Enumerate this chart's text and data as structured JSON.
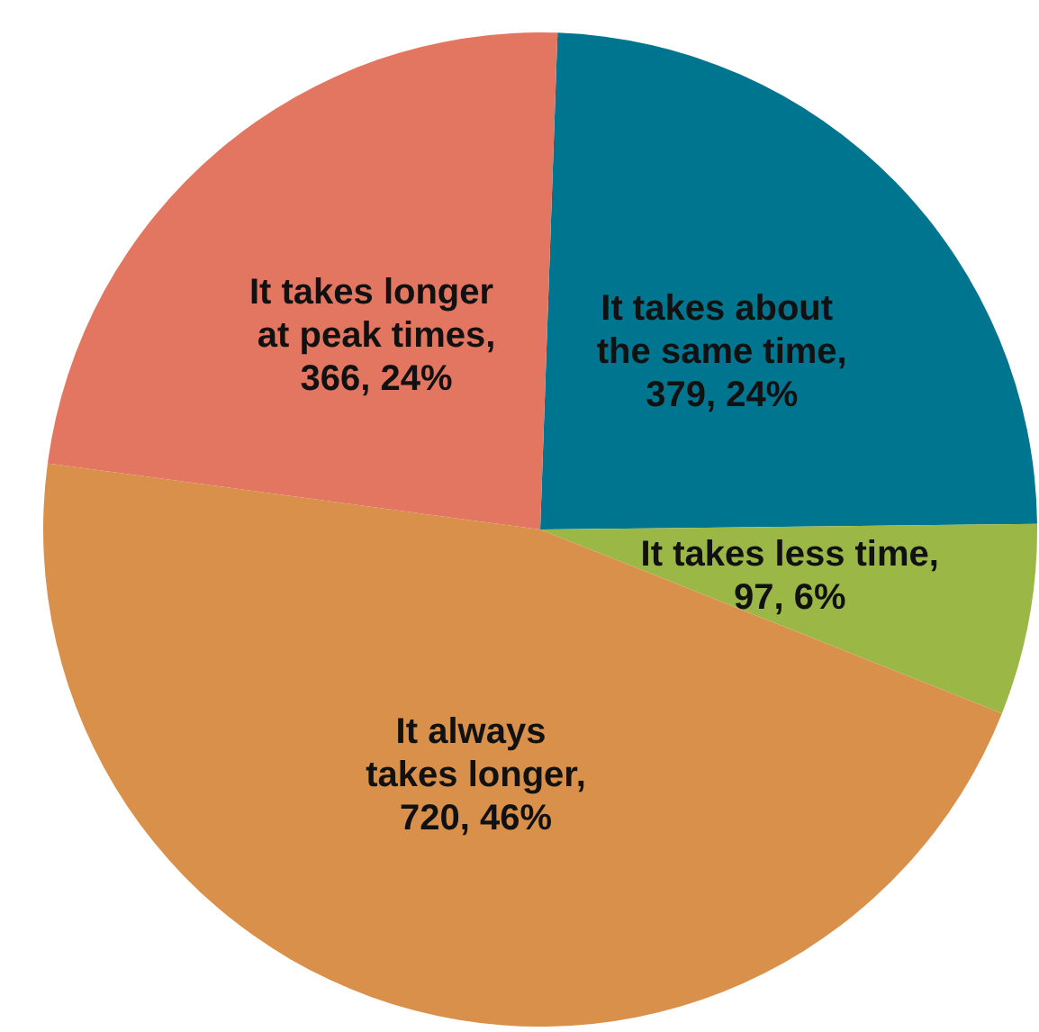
{
  "chart_data": {
    "type": "pie",
    "categories": [
      "It takes about the same time",
      "It takes less time",
      "It always takes longer",
      "It takes longer at peak times"
    ],
    "values": [
      379,
      97,
      720,
      366
    ],
    "value_labels": [
      ", 379, 24%",
      ", 97, 6%",
      ", 720, 46%",
      ", 366, 24%"
    ],
    "colors": [
      "#00758f",
      "#9bb847",
      "#d9904a",
      "#e37660"
    ]
  }
}
